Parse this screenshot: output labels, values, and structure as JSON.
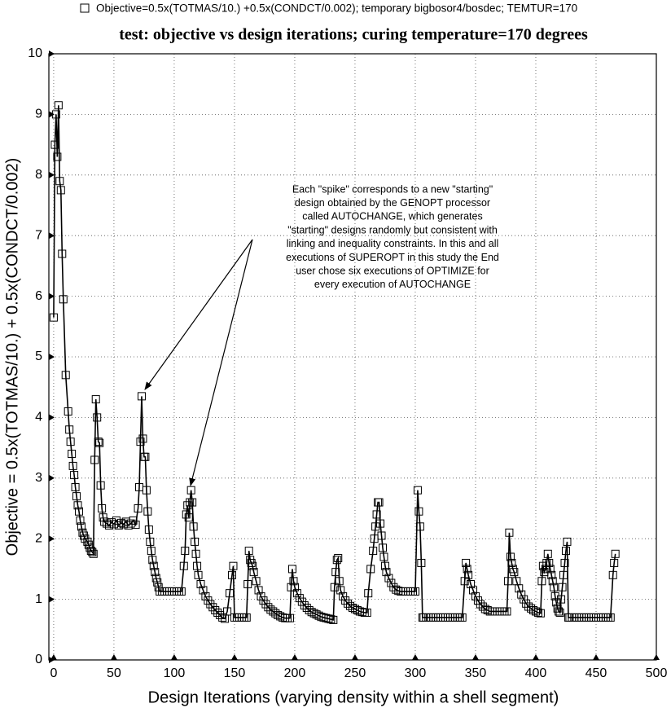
{
  "chart_data": {
    "type": "line",
    "title": "test: objective vs design iterations; curing temperature=170 degrees",
    "x_label": "Design Iterations (varying density within a shell segment)",
    "y_label": "Objective = 0.5x(TOTMAS/10.) + 0.5x(CONDCT/0.002)",
    "annotation": [
      "Each \"spike\" corresponds to a new \"starting\"",
      "design obtained by the GENOPT processor",
      "called AUTOCHANGE, which generates",
      "\"starting\" designs randomly but consistent with",
      "linking and inequality constraints. In this and all",
      "executions of SUPEROPT in this study the End",
      "user chose six executions of OPTIMIZE for",
      "every execution of AUTOCHANGE"
    ],
    "xlim": [
      -4,
      500
    ],
    "ylim": [
      0,
      10
    ],
    "xticks": [
      0,
      50,
      100,
      150,
      200,
      250,
      300,
      350,
      400,
      450,
      500
    ],
    "yticks": [
      0,
      1,
      2,
      3,
      4,
      5,
      6,
      7,
      8,
      9,
      10
    ],
    "grid": true,
    "legend": "top-left",
    "series": [
      {
        "name": "Objective=0.5x(TOTMAS/10.) +0.5x(CONDCT/0.002); temporary bigbosor4/bosdec; TEMTUR=170",
        "color": "#000000",
        "x": [
          0,
          1,
          2,
          3,
          4,
          5,
          6,
          7,
          8,
          10,
          12,
          13,
          14,
          15,
          16,
          17,
          18,
          19,
          20,
          21,
          22,
          23,
          24,
          25,
          26,
          28,
          29,
          30,
          31,
          32,
          33,
          34,
          35,
          36,
          37,
          38,
          39,
          40,
          41,
          42,
          44,
          46,
          48,
          50,
          52,
          54,
          56,
          58,
          60,
          62,
          64,
          66,
          68,
          70,
          71,
          72,
          73,
          74,
          75,
          76,
          77,
          78,
          79,
          80,
          81,
          82,
          83,
          84,
          85,
          86,
          87,
          88,
          90,
          92,
          94,
          96,
          98,
          100,
          102,
          104,
          106,
          108,
          109,
          110,
          111,
          112,
          113,
          114,
          115,
          116,
          117,
          118,
          119,
          120,
          122,
          124,
          126,
          128,
          130,
          132,
          134,
          136,
          138,
          140,
          142,
          144,
          146,
          148,
          149,
          150,
          152,
          154,
          156,
          158,
          160,
          161,
          162,
          163,
          164,
          165,
          166,
          168,
          170,
          172,
          174,
          176,
          178,
          180,
          182,
          184,
          186,
          188,
          190,
          192,
          194,
          196,
          197,
          198,
          199,
          200,
          202,
          204,
          206,
          208,
          210,
          212,
          214,
          216,
          218,
          220,
          222,
          224,
          226,
          228,
          230,
          232,
          233,
          234,
          235,
          236,
          237,
          238,
          240,
          242,
          244,
          246,
          248,
          250,
          252,
          254,
          256,
          258,
          260,
          261,
          263,
          265,
          266,
          267,
          268,
          269,
          270,
          271,
          272,
          273,
          274,
          275,
          276,
          278,
          280,
          282,
          284,
          286,
          288,
          290,
          292,
          294,
          296,
          298,
          300,
          302,
          303,
          304,
          305,
          306,
          307,
          309,
          311,
          313,
          315,
          317,
          319,
          321,
          323,
          325,
          327,
          329,
          331,
          333,
          335,
          337,
          339,
          341,
          342,
          343,
          344,
          346,
          348,
          350,
          352,
          354,
          356,
          358,
          360,
          362,
          364,
          366,
          368,
          370,
          372,
          374,
          376,
          377,
          378,
          379,
          380,
          381,
          382,
          384,
          386,
          388,
          390,
          392,
          394,
          396,
          398,
          400,
          402,
          404,
          405,
          406,
          407,
          408,
          409,
          410,
          411,
          412,
          413,
          414,
          415,
          416,
          417,
          418,
          419,
          420,
          421,
          422,
          423,
          424,
          425,
          426,
          427,
          428,
          430,
          432,
          434,
          436,
          438,
          440,
          442,
          444,
          446,
          448,
          450,
          452,
          454,
          456,
          458,
          460,
          462,
          464,
          465,
          466
        ],
        "values": [
          5.65,
          8.5,
          9.0,
          8.3,
          9.15,
          7.9,
          7.75,
          6.7,
          5.95,
          4.7,
          4.1,
          3.8,
          3.6,
          3.4,
          3.2,
          3.05,
          2.85,
          2.7,
          2.55,
          2.45,
          2.3,
          2.2,
          2.1,
          2.05,
          2.0,
          1.95,
          1.9,
          1.85,
          1.8,
          1.78,
          1.75,
          3.3,
          4.3,
          4.0,
          3.6,
          3.58,
          2.88,
          2.5,
          2.35,
          2.28,
          2.25,
          2.22,
          2.27,
          2.24,
          2.3,
          2.22,
          2.26,
          2.24,
          2.28,
          2.22,
          2.25,
          2.3,
          2.23,
          2.5,
          2.85,
          3.6,
          4.35,
          3.65,
          3.35,
          3.35,
          2.8,
          2.45,
          2.15,
          1.95,
          1.8,
          1.65,
          1.55,
          1.45,
          1.35,
          1.28,
          1.2,
          1.13,
          1.13,
          1.13,
          1.13,
          1.13,
          1.13,
          1.13,
          1.13,
          1.13,
          1.13,
          1.55,
          1.8,
          2.4,
          2.55,
          2.35,
          2.6,
          2.8,
          2.6,
          2.2,
          1.95,
          1.75,
          1.55,
          1.4,
          1.25,
          1.15,
          1.05,
          0.98,
          0.92,
          0.87,
          0.82,
          0.78,
          0.74,
          0.7,
          0.68,
          0.8,
          1.1,
          1.4,
          1.55,
          0.7,
          0.7,
          0.7,
          0.7,
          0.7,
          0.7,
          1.25,
          1.8,
          1.65,
          1.6,
          1.55,
          1.45,
          1.3,
          1.15,
          1.05,
          0.98,
          0.92,
          0.87,
          0.83,
          0.8,
          0.77,
          0.74,
          0.72,
          0.7,
          0.69,
          0.69,
          0.69,
          1.2,
          1.5,
          1.3,
          1.2,
          1.1,
          1.02,
          0.96,
          0.9,
          0.86,
          0.82,
          0.79,
          0.77,
          0.75,
          0.73,
          0.71,
          0.7,
          0.69,
          0.68,
          0.67,
          0.66,
          1.2,
          1.45,
          1.65,
          1.68,
          1.3,
          1.15,
          1.05,
          0.98,
          0.93,
          0.89,
          0.86,
          0.84,
          0.82,
          0.8,
          0.79,
          0.78,
          0.78,
          1.1,
          1.5,
          1.8,
          2.0,
          2.2,
          2.4,
          2.6,
          2.6,
          2.25,
          2.05,
          1.85,
          1.7,
          1.55,
          1.45,
          1.35,
          1.27,
          1.2,
          1.16,
          1.14,
          1.13,
          1.13,
          1.13,
          1.13,
          1.13,
          1.13,
          1.13,
          2.8,
          2.45,
          2.2,
          1.6,
          0.7,
          0.7,
          0.7,
          0.7,
          0.7,
          0.7,
          0.7,
          0.7,
          0.7,
          0.7,
          0.7,
          0.7,
          0.7,
          0.7,
          0.7,
          0.7,
          0.7,
          0.7,
          1.3,
          1.6,
          1.5,
          1.4,
          1.25,
          1.15,
          1.05,
          0.98,
          0.92,
          0.88,
          0.84,
          0.82,
          0.8,
          0.8,
          0.8,
          0.8,
          0.8,
          0.8,
          0.8,
          0.8,
          1.3,
          2.1,
          1.7,
          1.6,
          1.5,
          1.45,
          1.3,
          1.18,
          1.08,
          1.0,
          0.93,
          0.88,
          0.85,
          0.82,
          0.8,
          0.78,
          0.77,
          1.3,
          1.55,
          1.45,
          1.5,
          1.6,
          1.75,
          1.6,
          1.5,
          1.4,
          1.3,
          1.2,
          1.05,
          0.95,
          0.85,
          0.8,
          0.78,
          1.0,
          1.2,
          1.4,
          1.6,
          1.8,
          1.95,
          0.7,
          0.7,
          0.7,
          0.7,
          0.7,
          0.7,
          0.7,
          0.7,
          0.7,
          0.7,
          0.7,
          0.7,
          0.7,
          0.7,
          0.7,
          0.7,
          0.7,
          0.7,
          0.7,
          1.4,
          1.6,
          1.75
        ]
      }
    ]
  }
}
